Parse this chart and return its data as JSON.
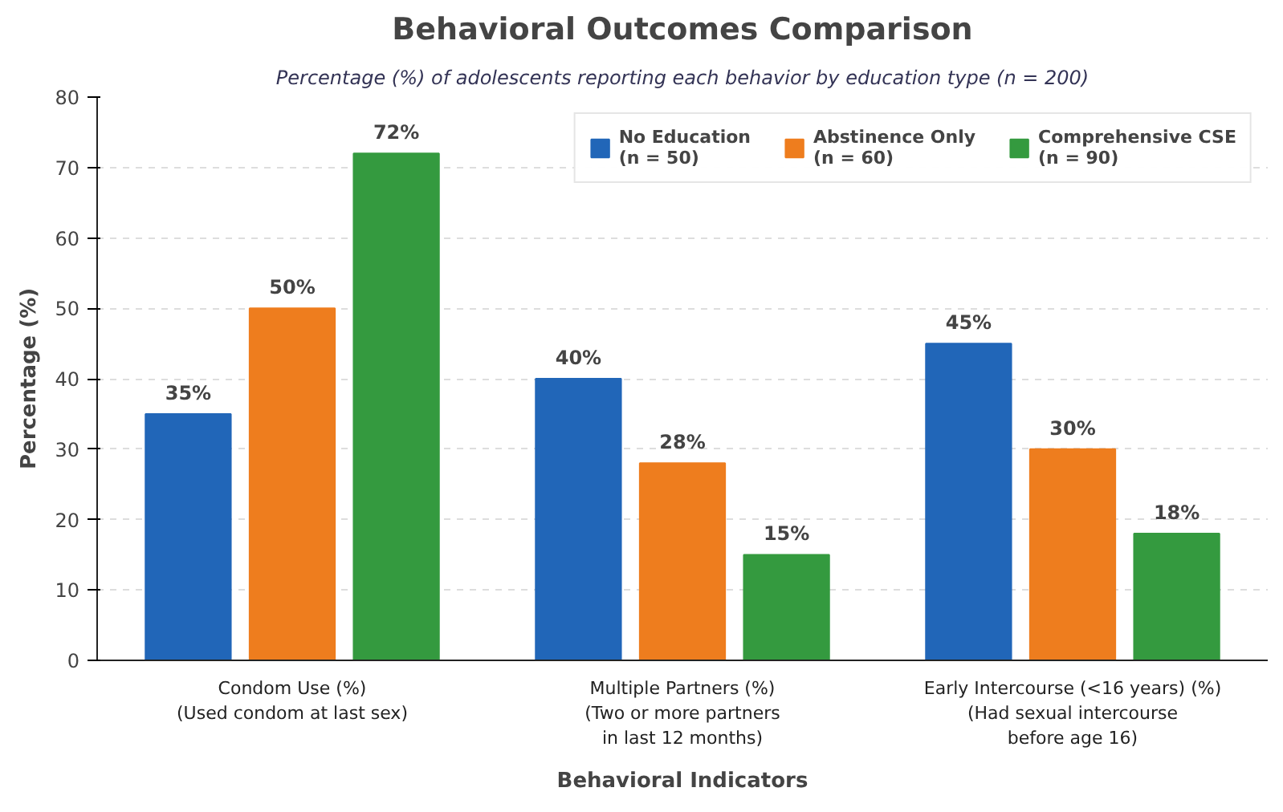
{
  "chart_data": {
    "type": "bar",
    "title": "Behavioral Outcomes Comparison",
    "subtitle": "Percentage (%) of adolescents reporting each behavior by education type (n = 200)",
    "xlabel": "Behavioral Indicators",
    "ylabel": "Percentage (%)",
    "categories": [
      "Condom Use (%)\n(Used condom at last sex)",
      "Multiple Partners (%)\n(Two or more partners\nin last 12 months)",
      "Early Intercourse (<16 years) (%)\n(Had sexual intercourse\nbefore age 16)"
    ],
    "series": [
      {
        "name": "No Education\n(n = 50)",
        "color": "#2166b8",
        "values": [
          35,
          40,
          45
        ],
        "value_labels": [
          "35%",
          "40%",
          "45%"
        ]
      },
      {
        "name": "Abstinence Only\n(n = 60)",
        "color": "#ee7d1e",
        "values": [
          50,
          28,
          30
        ],
        "value_labels": [
          "50%",
          "28%",
          "30%"
        ]
      },
      {
        "name": "Comprehensive CSE\n(n = 90)",
        "color": "#349a3f",
        "values": [
          72,
          15,
          18
        ],
        "value_labels": [
          "72%",
          "15%",
          "18%"
        ]
      }
    ],
    "ylim": [
      0,
      80
    ],
    "yticks": [
      0,
      10,
      20,
      30,
      40,
      50,
      60,
      70,
      80
    ],
    "grid": "y",
    "legend": "top right"
  }
}
